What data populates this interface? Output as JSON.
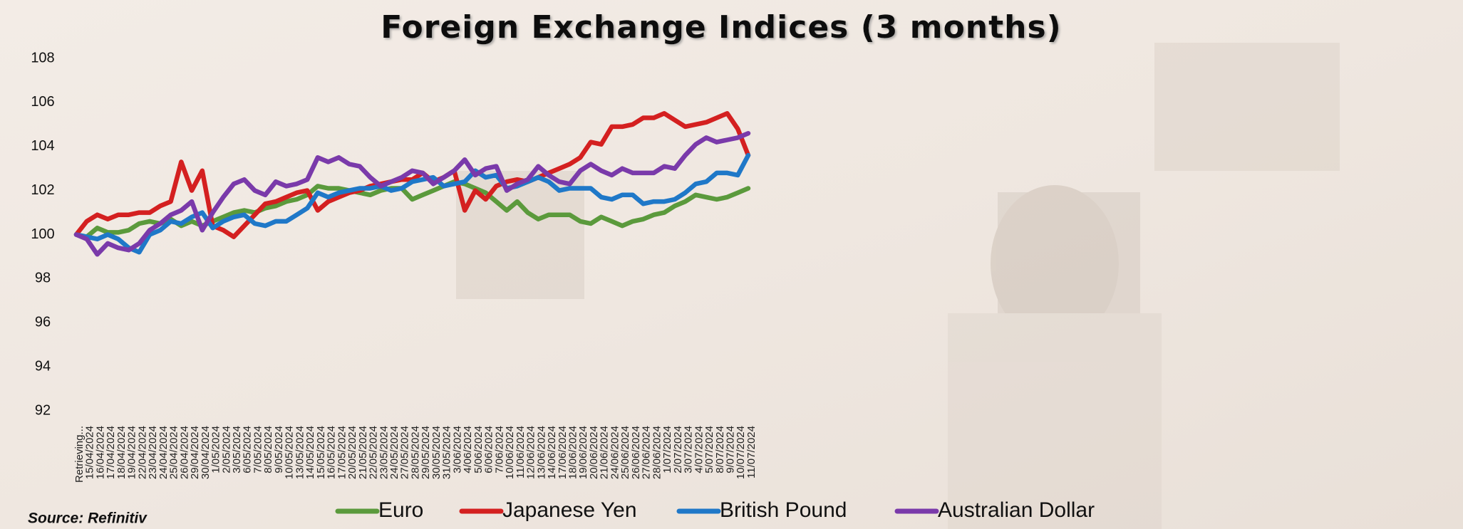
{
  "chart_data": {
    "type": "line",
    "title": "Foreign Exchange Indices (3 months)",
    "source": "Source: Refinitiv",
    "categories": [
      "Retrieving...",
      "15/04/2024",
      "16/04/2024",
      "17/04/2024",
      "18/04/2024",
      "19/04/2024",
      "22/04/2024",
      "23/04/2024",
      "24/04/2024",
      "25/04/2024",
      "26/04/2024",
      "29/04/2024",
      "30/04/2024",
      "1/05/2024",
      "2/05/2024",
      "3/05/2024",
      "6/05/2024",
      "7/05/2024",
      "8/05/2024",
      "9/05/2024",
      "10/05/2024",
      "13/05/2024",
      "14/05/2024",
      "15/05/2024",
      "16/05/2024",
      "17/05/2024",
      "20/05/2024",
      "21/05/2024",
      "22/05/2024",
      "23/05/2024",
      "24/05/2024",
      "27/05/2024",
      "28/05/2024",
      "29/05/2024",
      "30/05/2024",
      "31/05/2024",
      "3/06/2024",
      "4/06/2024",
      "5/06/2024",
      "6/06/2024",
      "7/06/2024",
      "10/06/2024",
      "11/06/2024",
      "12/06/2024",
      "13/06/2024",
      "14/06/2024",
      "17/06/2024",
      "18/06/2024",
      "19/06/2024",
      "20/06/2024",
      "21/06/2024",
      "24/06/2024",
      "25/06/2024",
      "26/06/2024",
      "27/06/2024",
      "28/06/2024",
      "1/07/2024",
      "2/07/2024",
      "3/07/2024",
      "4/07/2024",
      "5/07/2024",
      "8/07/2024",
      "9/07/2024",
      "10/07/2024",
      "11/07/2024"
    ],
    "series": [
      {
        "name": "Euro",
        "color": "#5b9a3c",
        "values": [
          100,
          99.9,
          100.3,
          100.1,
          100.1,
          100.2,
          100.5,
          100.6,
          100.5,
          100.7,
          100.4,
          100.6,
          100.4,
          100.6,
          100.8,
          101.0,
          101.1,
          101.0,
          101.2,
          101.3,
          101.5,
          101.6,
          101.8,
          102.2,
          102.1,
          102.1,
          102.0,
          101.9,
          101.8,
          102.0,
          102.1,
          102.1,
          101.6,
          101.8,
          102.0,
          102.2,
          102.4,
          102.3,
          102.1,
          101.9,
          101.5,
          101.1,
          101.5,
          101.0,
          100.7,
          100.9,
          100.9,
          100.9,
          100.6,
          100.5,
          100.8,
          100.6,
          100.4,
          100.6,
          100.7,
          100.9,
          101.0,
          101.3,
          101.5,
          101.8,
          101.7,
          101.6,
          101.7,
          101.9,
          102.1
        ]
      },
      {
        "name": "Japanese Yen",
        "color": "#d42020",
        "values": [
          100,
          100.6,
          100.9,
          100.7,
          100.9,
          100.9,
          101.0,
          101.0,
          101.3,
          101.5,
          103.3,
          102.0,
          102.9,
          100.4,
          100.2,
          99.9,
          100.4,
          100.9,
          101.4,
          101.5,
          101.7,
          101.9,
          102.0,
          101.1,
          101.5,
          101.7,
          101.9,
          102.0,
          102.2,
          102.3,
          102.4,
          102.5,
          102.5,
          102.8,
          102.4,
          102.6,
          102.9,
          101.1,
          102.0,
          101.6,
          102.2,
          102.4,
          102.5,
          102.4,
          102.6,
          102.8,
          103.0,
          103.2,
          103.5,
          104.2,
          104.1,
          104.9,
          104.9,
          105.0,
          105.3,
          105.3,
          105.5,
          105.2,
          104.9,
          105.0,
          105.1,
          105.3,
          105.5,
          104.8,
          103.6
        ]
      },
      {
        "name": "British Pound",
        "color": "#1f78c8",
        "values": [
          100,
          99.9,
          99.8,
          100.0,
          99.8,
          99.4,
          99.2,
          100.0,
          100.2,
          100.6,
          100.5,
          100.8,
          101.0,
          100.3,
          100.6,
          100.8,
          100.9,
          100.5,
          100.4,
          100.6,
          100.6,
          100.9,
          101.2,
          101.9,
          101.7,
          101.9,
          102.0,
          102.1,
          102.1,
          102.2,
          102.0,
          102.1,
          102.4,
          102.5,
          102.6,
          102.2,
          102.3,
          102.4,
          102.9,
          102.6,
          102.7,
          102.1,
          102.2,
          102.4,
          102.6,
          102.4,
          102.0,
          102.1,
          102.1,
          102.1,
          101.7,
          101.6,
          101.8,
          101.8,
          101.4,
          101.5,
          101.5,
          101.6,
          101.9,
          102.3,
          102.4,
          102.8,
          102.8,
          102.7,
          103.6
        ]
      },
      {
        "name": "Australian Dollar",
        "color": "#7a3aaa",
        "values": [
          100,
          99.8,
          99.1,
          99.6,
          99.4,
          99.3,
          99.6,
          100.2,
          100.5,
          100.9,
          101.1,
          101.5,
          100.2,
          101.0,
          101.7,
          102.3,
          102.5,
          102.0,
          101.8,
          102.4,
          102.2,
          102.3,
          102.5,
          103.5,
          103.3,
          103.5,
          103.2,
          103.1,
          102.6,
          102.2,
          102.4,
          102.6,
          102.9,
          102.8,
          102.3,
          102.6,
          102.9,
          103.4,
          102.7,
          103.0,
          103.1,
          102.0,
          102.3,
          102.5,
          103.1,
          102.7,
          102.4,
          102.3,
          102.9,
          103.2,
          102.9,
          102.7,
          103.0,
          102.8,
          102.8,
          102.8,
          103.1,
          103.0,
          103.6,
          104.1,
          104.4,
          104.2,
          104.3,
          104.4,
          104.6
        ]
      }
    ],
    "ylim": [
      92,
      108
    ],
    "yticks": [
      92,
      94,
      96,
      98,
      100,
      102,
      104,
      106,
      108
    ],
    "grid": false,
    "legend": "bottom"
  }
}
